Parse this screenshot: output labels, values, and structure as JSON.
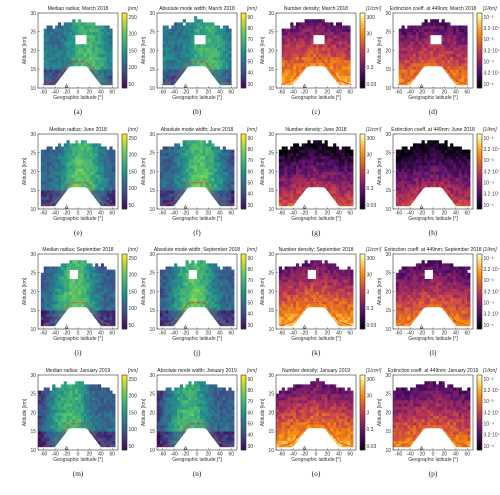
{
  "figure": {
    "rows": [
      {
        "month": "March 2018",
        "panels": [
          {
            "letter": "(a)",
            "title": "Median radius; March 2018",
            "unit": "[nm]",
            "var": "radius",
            "caption": "(a)"
          },
          {
            "letter": "(b)",
            "title": "Absolute mode width; March 2018",
            "unit": "[nm]",
            "var": "width",
            "caption": "(b)"
          },
          {
            "letter": "(c)",
            "title": "Number density; March 2018",
            "unit": "[1/cm³]",
            "var": "number",
            "caption": "(c)"
          },
          {
            "letter": "(d)",
            "title": "Extinction coeff. at 449nm; March 2018",
            "unit": "[1/km]",
            "var": "ext",
            "caption": "(d)"
          }
        ]
      },
      {
        "month": "June 2018",
        "panels": [
          {
            "letter": "(e)",
            "title": "Median radius; June 2018",
            "unit": "[nm]",
            "var": "radius",
            "caption": "(e)"
          },
          {
            "letter": "(f)",
            "title": "Absolute mode width; June 2018",
            "unit": "[nm]",
            "var": "width",
            "caption": "(f)"
          },
          {
            "letter": "(g)",
            "title": "Number density; June 2018",
            "unit": "[1/cm³]",
            "var": "number",
            "caption": "(g)"
          },
          {
            "letter": "(h)",
            "title": "Extinction coeff. at 449nm; June 2018",
            "unit": "[1/km]",
            "var": "ext",
            "caption": "(h)"
          }
        ]
      },
      {
        "month": "September 2018",
        "panels": [
          {
            "letter": "(i)",
            "title": "Median radius; September 2018",
            "unit": "[nm]",
            "var": "radius",
            "caption": "(i)"
          },
          {
            "letter": "(j)",
            "title": "Absolute mode width; September 2018",
            "unit": "[nm]",
            "var": "width",
            "caption": "(j)"
          },
          {
            "letter": "(k)",
            "title": "Number density; September 2018",
            "unit": "[1/cm³]",
            "var": "number",
            "caption": "(k)"
          },
          {
            "letter": "(l)",
            "title": "Extinction coeff. at 449nm; September 2018",
            "unit": "[1/km]",
            "var": "ext",
            "caption": "(l)"
          }
        ]
      },
      {
        "month": "January 2019",
        "panels": [
          {
            "letter": "(m)",
            "title": "Median radius; January 2019",
            "unit": "[nm]",
            "var": "radius",
            "caption": "(m)"
          },
          {
            "letter": "(n)",
            "title": "Absolute mode width; January 2019",
            "unit": "[nm]",
            "var": "width",
            "caption": "(n)"
          },
          {
            "letter": "(o)",
            "title": "Number density; January 2019",
            "unit": "[1/cm³]",
            "var": "number",
            "caption": "(o)"
          },
          {
            "letter": "(p)",
            "title": "Extinction coeff. at 449nm; January 2019",
            "unit": "[1/km]",
            "var": "ext",
            "caption": "(p)"
          }
        ]
      }
    ],
    "axes": {
      "xlabel": "Geographic latitude [°]",
      "ylabel": "Altitude [km]",
      "xlim": [
        -70,
        70
      ],
      "ylim": [
        10,
        30
      ],
      "xticks": [
        -60,
        -40,
        -20,
        0,
        20,
        40,
        60
      ],
      "yticks": [
        10,
        15,
        20,
        25,
        30
      ]
    },
    "colorbars": {
      "radius": {
        "ticks": [
          "250",
          "200",
          "150",
          "100",
          "50"
        ],
        "colormap": "viridis"
      },
      "width": {
        "ticks": [
          "90",
          "80",
          "70",
          "60",
          "50",
          "40",
          "30"
        ],
        "colormap": "viridis"
      },
      "number": {
        "ticks": [
          "300",
          "30",
          "3",
          "0.3",
          "0.03"
        ],
        "colormap": "inferno"
      },
      "ext": {
        "ticks": [
          "10⁻²",
          "3.2·10⁻³",
          "10⁻³",
          "3.2·10⁻⁴",
          "10⁻⁴",
          "3.2·10⁻⁵",
          "10⁻⁵"
        ],
        "colormap": "inferno"
      }
    },
    "colors": {
      "tropopause": "#e0343a",
      "frame": "#333333"
    }
  },
  "chart_data": {
    "type": "heatmap",
    "panels_count": 16,
    "quantities": [
      "Median radius",
      "Absolute mode width",
      "Number density",
      "Extinction coeff. at 449nm"
    ],
    "months": [
      "March 2018",
      "June 2018",
      "September 2018",
      "January 2019"
    ],
    "x": {
      "label": "Geographic latitude [°]",
      "range": [
        -70,
        70
      ]
    },
    "y": {
      "label": "Altitude [km]",
      "range": [
        10,
        30
      ]
    },
    "tropopause_km": {
      "latitudes": [
        -60,
        -40,
        -25,
        -15,
        0,
        15,
        25,
        40,
        60
      ],
      "altitude": [
        11,
        12,
        15,
        17,
        17,
        17,
        15,
        12,
        11
      ]
    }
  }
}
